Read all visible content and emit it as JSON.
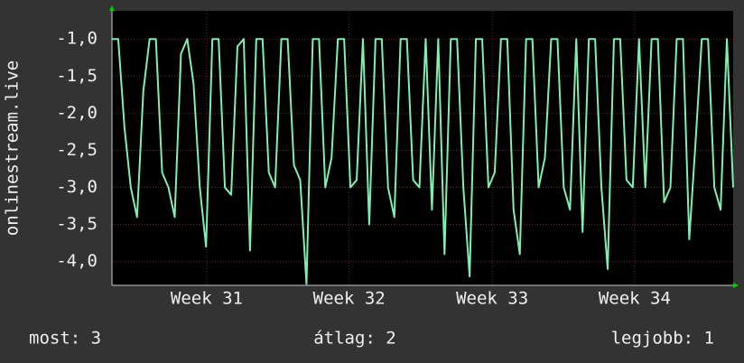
{
  "chart_data": {
    "type": "line",
    "y_label": "onlinestream.live",
    "x": [
      0,
      1,
      2,
      3,
      4,
      5,
      6,
      7,
      8,
      9,
      10,
      11,
      12,
      13,
      14,
      15,
      16,
      17,
      18,
      19,
      20,
      21,
      22,
      23,
      24,
      25,
      26,
      27,
      28,
      29,
      30,
      31,
      32,
      33,
      34,
      35,
      36,
      37,
      38,
      39,
      40,
      41,
      42,
      43,
      44,
      45,
      46,
      47,
      48,
      49,
      50,
      51,
      52,
      53,
      54,
      55,
      56,
      57,
      58,
      59,
      60,
      61,
      62,
      63,
      64,
      65,
      66,
      67,
      68,
      69,
      70,
      71,
      72,
      73,
      74,
      75,
      76,
      77,
      78,
      79,
      80,
      81,
      82,
      83,
      84,
      85,
      86,
      87,
      88,
      89,
      90,
      91,
      92,
      93,
      94,
      95,
      96,
      97,
      98,
      99
    ],
    "series": [
      {
        "color": "#80f0b0",
        "values": [
          -1,
          -1,
          -2.2,
          -3,
          -3.4,
          -1.7,
          -1,
          -1,
          -2.8,
          -3,
          -3.4,
          -1.2,
          -1,
          -1.6,
          -3,
          -3.8,
          -1,
          -1,
          -3,
          -3.1,
          -1.1,
          -1,
          -3.85,
          -1,
          -1,
          -2.8,
          -3,
          -1,
          -1,
          -2.7,
          -2.9,
          -4.3,
          -1,
          -1,
          -3,
          -2.6,
          -1,
          -1,
          -3,
          -2.9,
          -1,
          -3.5,
          -1,
          -1,
          -3,
          -3.4,
          -1,
          -1,
          -2.9,
          -3,
          -1,
          -3.3,
          -1,
          -3.9,
          -1,
          -1,
          -3,
          -4.2,
          -1,
          -1,
          -3,
          -2.8,
          -1,
          -1,
          -3.3,
          -3.9,
          -1,
          -1,
          -3,
          -2.6,
          -1,
          -1,
          -3,
          -3.3,
          -1,
          -3.6,
          -1,
          -1,
          -3,
          -4.1,
          -1,
          -1,
          -2.9,
          -3,
          -1,
          -3,
          -1,
          -1,
          -3.2,
          -3,
          -1,
          -1,
          -3.7,
          -2.4,
          -1,
          -1,
          -3,
          -3.3,
          -1,
          -3
        ]
      }
    ],
    "xlim": [
      0,
      99
    ],
    "xticks": [
      {
        "value": 15.1,
        "label": "Week 31"
      },
      {
        "value": 37.8,
        "label": "Week 32"
      },
      {
        "value": 60.6,
        "label": "Week 33"
      },
      {
        "value": 83.3,
        "label": "Week 34"
      }
    ],
    "ylim": [
      -4.32,
      -0.62
    ],
    "yticks": [
      {
        "value": -1.0,
        "label": "-1,0"
      },
      {
        "value": -1.5,
        "label": "-1,5"
      },
      {
        "value": -2.0,
        "label": "-2,0"
      },
      {
        "value": -2.5,
        "label": "-2,5"
      },
      {
        "value": -3.0,
        "label": "-3,0"
      },
      {
        "value": -3.5,
        "label": "-3,5"
      },
      {
        "value": -4.0,
        "label": "-4,0"
      }
    ],
    "grid": true,
    "footer": [
      "most: 3",
      "átlag: 2",
      "legjobb: 1"
    ]
  }
}
